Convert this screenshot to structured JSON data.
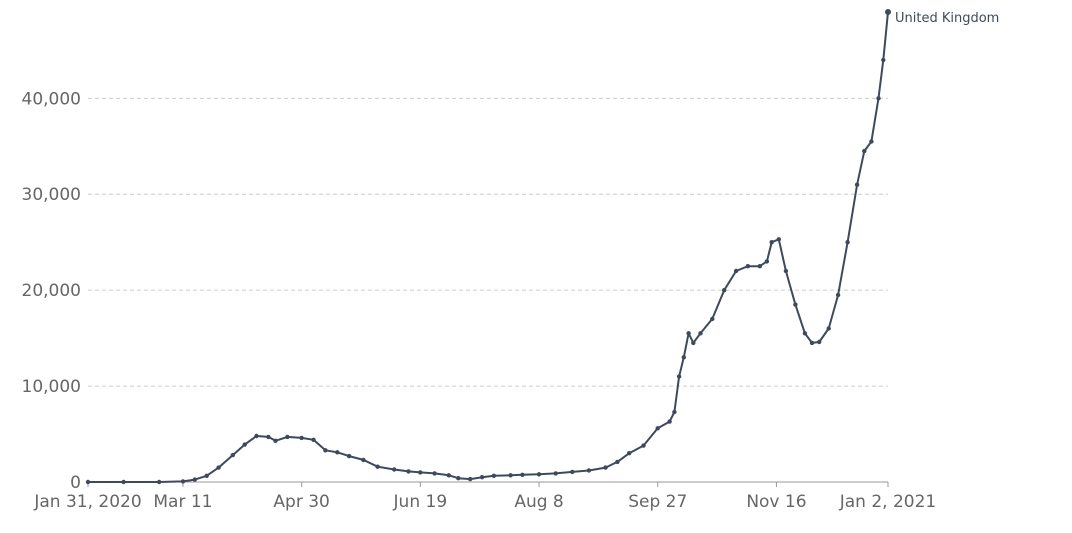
{
  "chart_data": {
    "type": "line",
    "x_type": "date",
    "xlim": [
      "2020-01-31",
      "2021-01-02"
    ],
    "ylim": [
      0,
      49000
    ],
    "grid": true,
    "x_ticks": [
      {
        "date": "2020-01-31",
        "label": "Jan 31, 2020"
      },
      {
        "date": "2020-03-11",
        "label": "Mar 11"
      },
      {
        "date": "2020-04-30",
        "label": "Apr 30"
      },
      {
        "date": "2020-06-19",
        "label": "Jun 19"
      },
      {
        "date": "2020-08-08",
        "label": "Aug 8"
      },
      {
        "date": "2020-09-27",
        "label": "Sep 27"
      },
      {
        "date": "2020-11-16",
        "label": "Nov 16"
      },
      {
        "date": "2021-01-02",
        "label": "Jan 2, 2021"
      }
    ],
    "y_ticks": [
      {
        "value": 0,
        "label": "0"
      },
      {
        "value": 10000,
        "label": "10,000"
      },
      {
        "value": 20000,
        "label": "20,000"
      },
      {
        "value": 30000,
        "label": "30,000"
      },
      {
        "value": 40000,
        "label": "40,000"
      }
    ],
    "series": [
      {
        "name": "United Kingdom",
        "color": "#3d4a5e",
        "points": [
          [
            "2020-01-31",
            0
          ],
          [
            "2020-02-15",
            0
          ],
          [
            "2020-03-01",
            5
          ],
          [
            "2020-03-11",
            60
          ],
          [
            "2020-03-16",
            250
          ],
          [
            "2020-03-21",
            650
          ],
          [
            "2020-03-26",
            1500
          ],
          [
            "2020-04-01",
            2800
          ],
          [
            "2020-04-06",
            3900
          ],
          [
            "2020-04-11",
            4800
          ],
          [
            "2020-04-16",
            4700
          ],
          [
            "2020-04-19",
            4300
          ],
          [
            "2020-04-24",
            4700
          ],
          [
            "2020-04-30",
            4600
          ],
          [
            "2020-05-05",
            4400
          ],
          [
            "2020-05-10",
            3300
          ],
          [
            "2020-05-15",
            3100
          ],
          [
            "2020-05-20",
            2700
          ],
          [
            "2020-05-26",
            2300
          ],
          [
            "2020-06-01",
            1600
          ],
          [
            "2020-06-08",
            1300
          ],
          [
            "2020-06-14",
            1100
          ],
          [
            "2020-06-19",
            1000
          ],
          [
            "2020-06-25",
            900
          ],
          [
            "2020-07-01",
            700
          ],
          [
            "2020-07-05",
            400
          ],
          [
            "2020-07-10",
            300
          ],
          [
            "2020-07-15",
            500
          ],
          [
            "2020-07-20",
            650
          ],
          [
            "2020-07-27",
            700
          ],
          [
            "2020-08-01",
            750
          ],
          [
            "2020-08-08",
            800
          ],
          [
            "2020-08-15",
            900
          ],
          [
            "2020-08-22",
            1050
          ],
          [
            "2020-08-29",
            1200
          ],
          [
            "2020-09-05",
            1500
          ],
          [
            "2020-09-10",
            2100
          ],
          [
            "2020-09-15",
            3000
          ],
          [
            "2020-09-21",
            3800
          ],
          [
            "2020-09-27",
            5600
          ],
          [
            "2020-10-02",
            6300
          ],
          [
            "2020-10-04",
            7300
          ],
          [
            "2020-10-06",
            11000
          ],
          [
            "2020-10-08",
            13000
          ],
          [
            "2020-10-10",
            15500
          ],
          [
            "2020-10-12",
            14500
          ],
          [
            "2020-10-15",
            15500
          ],
          [
            "2020-10-20",
            17000
          ],
          [
            "2020-10-25",
            20000
          ],
          [
            "2020-10-30",
            22000
          ],
          [
            "2020-11-04",
            22500
          ],
          [
            "2020-11-09",
            22500
          ],
          [
            "2020-11-12",
            23000
          ],
          [
            "2020-11-14",
            25000
          ],
          [
            "2020-11-17",
            25300
          ],
          [
            "2020-11-20",
            22000
          ],
          [
            "2020-11-24",
            18500
          ],
          [
            "2020-11-28",
            15500
          ],
          [
            "2020-12-01",
            14500
          ],
          [
            "2020-12-04",
            14600
          ],
          [
            "2020-12-08",
            16000
          ],
          [
            "2020-12-12",
            19500
          ],
          [
            "2020-12-16",
            25000
          ],
          [
            "2020-12-20",
            31000
          ],
          [
            "2020-12-23",
            34500
          ],
          [
            "2020-12-26",
            35500
          ],
          [
            "2020-12-29",
            40000
          ],
          [
            "2020-12-31",
            44000
          ],
          [
            "2021-01-02",
            49000
          ]
        ]
      }
    ]
  }
}
